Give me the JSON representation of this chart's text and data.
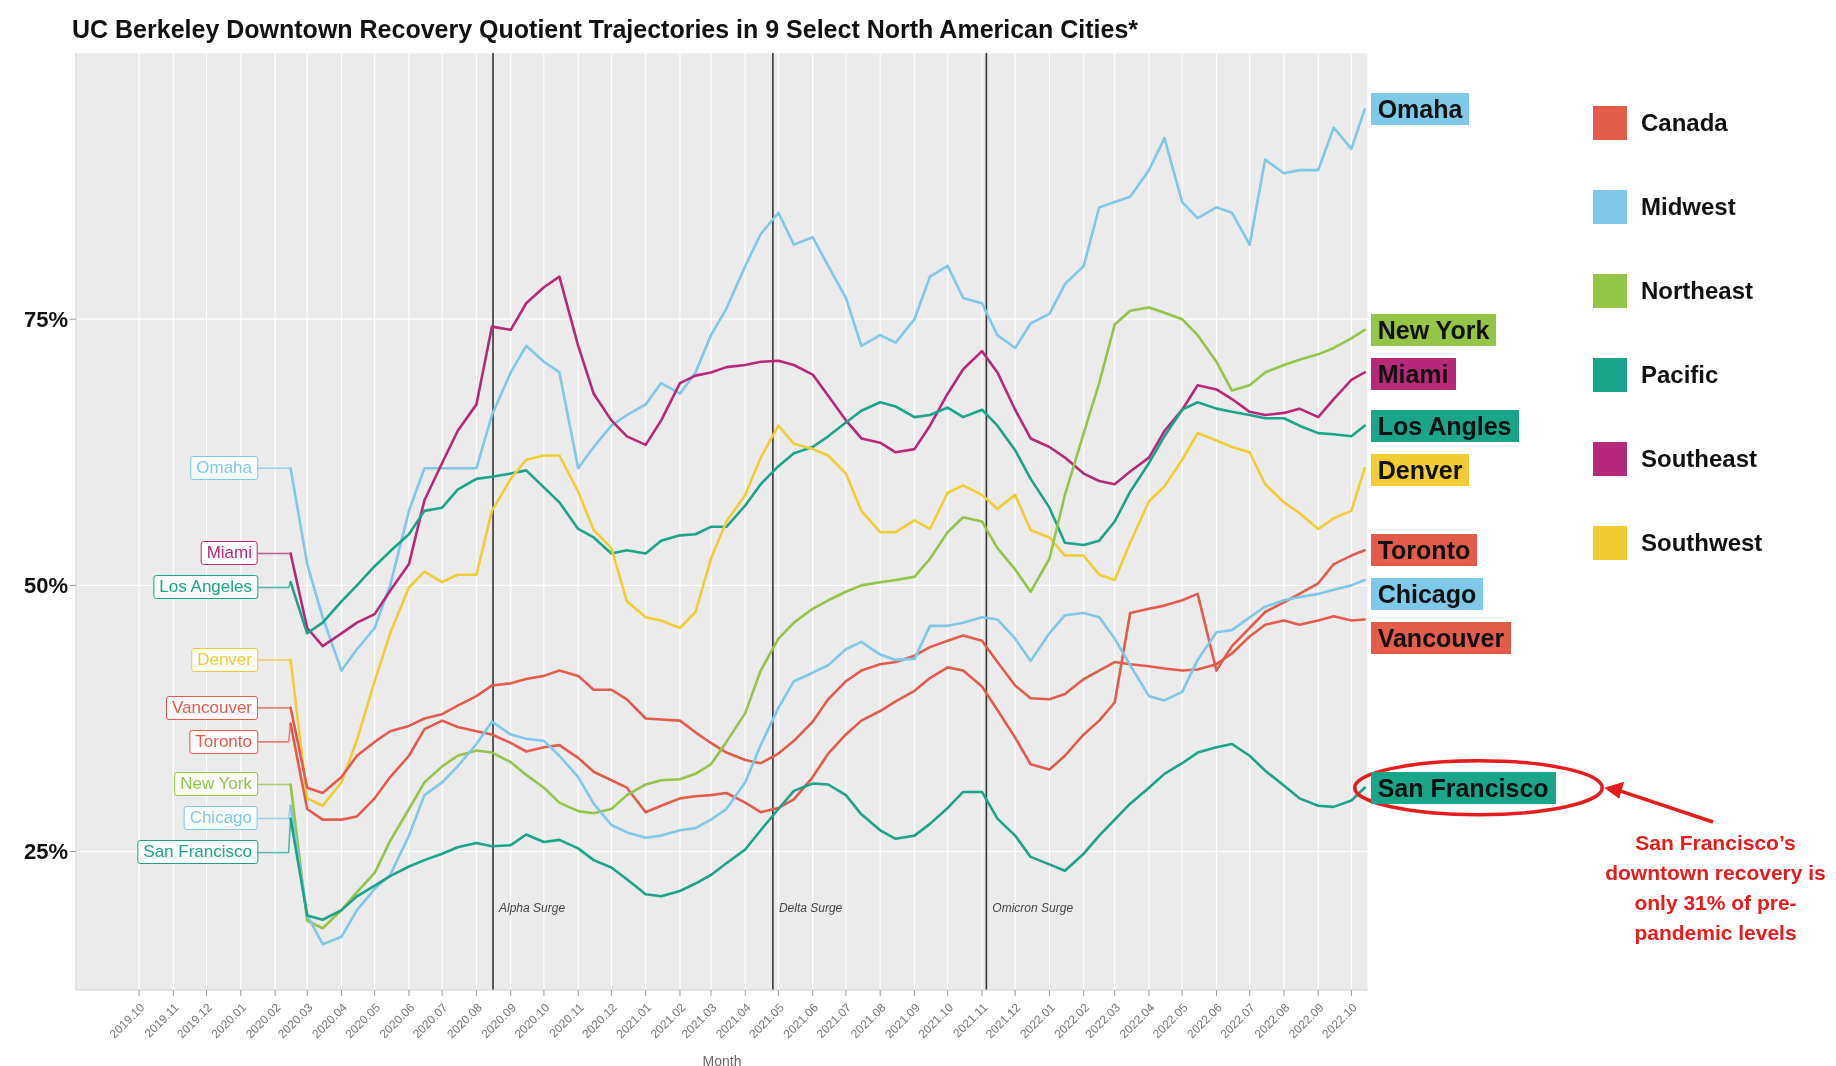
{
  "chart_data": {
    "type": "line",
    "title": "UC Berkeley Downtown Recovery Quotient Trajectories in 9 Select North American Cities*",
    "xlabel": "Month",
    "x": [
      "2020-02-15",
      "2020-03-01",
      "2020-03-15",
      "2020-04-01",
      "2020-04-15",
      "2020-05-01",
      "2020-05-15",
      "2020-06-01",
      "2020-06-15",
      "2020-07-01",
      "2020-07-15",
      "2020-08-01",
      "2020-08-15",
      "2020-09-01",
      "2020-09-15",
      "2020-10-01",
      "2020-10-15",
      "2020-11-01",
      "2020-11-15",
      "2020-12-01",
      "2020-12-15",
      "2021-01-01",
      "2021-01-15",
      "2021-02-01",
      "2021-02-15",
      "2021-03-01",
      "2021-03-15",
      "2021-04-01",
      "2021-04-15",
      "2021-05-01",
      "2021-05-15",
      "2021-06-01",
      "2021-06-15",
      "2021-07-01",
      "2021-07-15",
      "2021-08-01",
      "2021-08-15",
      "2021-09-01",
      "2021-09-15",
      "2021-10-01",
      "2021-10-15",
      "2021-11-01",
      "2021-11-15",
      "2021-12-01",
      "2021-12-15",
      "2022-01-01",
      "2022-01-15",
      "2022-02-01",
      "2022-02-15",
      "2022-03-01",
      "2022-03-15",
      "2022-04-01",
      "2022-04-15",
      "2022-05-01",
      "2022-05-15",
      "2022-06-01",
      "2022-06-15",
      "2022-07-01",
      "2022-07-15",
      "2022-08-01",
      "2022-08-15",
      "2022-09-01",
      "2022-09-15",
      "2022-10-01",
      "2022-10-13"
    ],
    "series": [
      {
        "color": "#7ec8e8",
        "values": [
          61,
          52,
          47,
          42,
          44,
          46,
          50,
          57,
          61,
          61,
          61,
          61,
          66,
          70,
          72.5,
          71,
          70,
          61,
          63,
          65,
          66,
          67,
          69,
          68,
          70,
          73.5,
          76,
          80,
          83,
          85,
          82,
          82.7,
          80,
          77,
          72.5,
          73.5,
          72.8,
          75,
          79,
          80,
          77,
          76.5,
          73.5,
          72.3,
          74.6,
          75.5,
          78.3,
          80,
          85.5,
          86,
          86.5,
          89,
          92,
          86,
          84.5,
          85.5,
          85,
          82,
          90,
          88.7,
          89,
          89,
          93,
          91,
          94.7
        ]
      },
      {
        "color": "#b8287a",
        "values": [
          53,
          46,
          44.3,
          45.5,
          46.5,
          47.3,
          49.5,
          52,
          58,
          61.5,
          64.5,
          67,
          74.3,
          74,
          76.5,
          78,
          79,
          72.5,
          68,
          65.5,
          64,
          63.2,
          65.5,
          69,
          69.7,
          70,
          70.5,
          70.7,
          71,
          71.1,
          70.7,
          69.8,
          67.8,
          65.5,
          63.8,
          63.4,
          62.5,
          62.8,
          65,
          68,
          70.3,
          72,
          70,
          66.5,
          63.8,
          63,
          62,
          60.5,
          59.8,
          59.5,
          60.7,
          62,
          64.5,
          66.5,
          68.8,
          68.4,
          67.5,
          66.3,
          66,
          66.2,
          66.6,
          65.8,
          67.5,
          69.3,
          70
        ]
      },
      {
        "color": "#1aa48a",
        "values": [
          50.3,
          45.5,
          46.5,
          48.5,
          50,
          51.8,
          53.2,
          54.8,
          57,
          57.3,
          59,
          60,
          60.2,
          60.5,
          60.8,
          59.2,
          57.8,
          55.3,
          54.5,
          53,
          53.3,
          53,
          54.2,
          54.7,
          54.8,
          55.5,
          55.5,
          57.5,
          59.5,
          61.2,
          62.4,
          63,
          64,
          65.3,
          66.4,
          67.2,
          66.8,
          65.8,
          66,
          66.7,
          65.8,
          66.5,
          65,
          62.7,
          60,
          57.3,
          54,
          53.8,
          54.2,
          56,
          58.8,
          61.5,
          64,
          66.5,
          67.2,
          66.6,
          66.3,
          66,
          65.7,
          65.7,
          65,
          64.3,
          64.2,
          64,
          65
        ]
      },
      {
        "color": "#f2cc35",
        "values": [
          43,
          30,
          29.3,
          31.5,
          35.5,
          41,
          45.5,
          49.8,
          51.3,
          50.3,
          51,
          51,
          57,
          60,
          61.8,
          62.2,
          62.2,
          58.8,
          55.2,
          53.5,
          48.5,
          47,
          46.7,
          46,
          47.5,
          52.5,
          56,
          58.5,
          62,
          65,
          63.3,
          62.8,
          62.2,
          60.5,
          57,
          55,
          55,
          56.1,
          55.3,
          58.7,
          59.4,
          58.5,
          57.2,
          58.5,
          55.2,
          54.5,
          52.8,
          52.8,
          51,
          50.5,
          54,
          57.9,
          59.3,
          61.8,
          64.3,
          63.6,
          63,
          62.5,
          59.5,
          57.8,
          56.8,
          55.3,
          56.3,
          57,
          61
        ]
      },
      {
        "color": "#e35b4b",
        "values": [
          38.5,
          31,
          30.5,
          32,
          34,
          35.3,
          36.3,
          36.8,
          37.5,
          37.9,
          38.7,
          39.6,
          40.6,
          40.8,
          41.2,
          41.5,
          42,
          41.5,
          40.2,
          40.2,
          39.3,
          37.5,
          37.4,
          37.3,
          36.2,
          35.2,
          34.3,
          33.6,
          33.3,
          34.2,
          35.4,
          37.2,
          39.3,
          41,
          42,
          42.6,
          42.8,
          43.4,
          44.2,
          44.8,
          45.3,
          44.8,
          42.8,
          40.6,
          39.4,
          39.3,
          39.8,
          41.2,
          42,
          42.8,
          42.6,
          42.4,
          42.2,
          42,
          42.1,
          42.6,
          43.6,
          45.2,
          46.3,
          46.7,
          46.3,
          46.7,
          47.1,
          46.7,
          46.8
        ]
      },
      {
        "color": "#e35b4b",
        "values": [
          37,
          29,
          28,
          28,
          28.3,
          30,
          32,
          34,
          36.5,
          37.3,
          36.7,
          36.3,
          36,
          35.2,
          34.4,
          34.8,
          35,
          33.8,
          32.5,
          31.7,
          31,
          28.7,
          29.3,
          30,
          30.2,
          30.3,
          30.5,
          29.6,
          28.7,
          29.1,
          29.9,
          32,
          34.2,
          36,
          37.3,
          38.2,
          39.1,
          40.1,
          41.3,
          42.3,
          42,
          40.5,
          38.3,
          35.7,
          33.2,
          32.7,
          34,
          36,
          37.3,
          39,
          47.4,
          47.8,
          48.1,
          48.6,
          49.2,
          42,
          44.3,
          46,
          47.5,
          48.4,
          49.2,
          50.2,
          52,
          52.8,
          53.3
        ]
      },
      {
        "color": "#93c547",
        "values": [
          31.3,
          18.5,
          17.8,
          19.5,
          21.2,
          23,
          26,
          29,
          31.5,
          33,
          34,
          34.5,
          34.3,
          33.4,
          32.2,
          31,
          29.6,
          28.8,
          28.6,
          29,
          30.3,
          31.3,
          31.7,
          31.8,
          32.3,
          33.2,
          35.3,
          38,
          42,
          45,
          46.5,
          47.8,
          48.6,
          49.4,
          50,
          50.3,
          50.5,
          50.8,
          52.5,
          55,
          56.4,
          56,
          53.5,
          51.5,
          49.4,
          52.5,
          58.5,
          64.3,
          69,
          74.5,
          75.8,
          76.1,
          75.6,
          75,
          73.5,
          71,
          68.3,
          68.8,
          70,
          70.7,
          71.2,
          71.7,
          72.3,
          73.2,
          74
        ]
      },
      {
        "color": "#7ec8e8",
        "values": [
          29.3,
          19,
          16.3,
          17,
          19.5,
          21.5,
          22.8,
          26.5,
          30.3,
          31.5,
          33,
          35.1,
          37.2,
          36,
          35.6,
          35.4,
          34,
          32,
          29.5,
          27.5,
          26.8,
          26.3,
          26.5,
          27,
          27.2,
          28,
          29,
          31.5,
          35,
          38.5,
          41,
          41.8,
          42.5,
          44,
          44.7,
          43.5,
          43,
          43.1,
          46.2,
          46.2,
          46.5,
          47,
          46.8,
          45,
          42.9,
          45.5,
          47.2,
          47.4,
          47,
          45,
          42.5,
          39.6,
          39.2,
          40,
          43,
          45.6,
          45.8,
          47,
          48,
          48.6,
          48.9,
          49.2,
          49.6,
          50,
          50.5
        ]
      },
      {
        "color": "#1aa48a",
        "values": [
          28.1,
          19,
          18.6,
          19.5,
          20.8,
          21.8,
          22.7,
          23.6,
          24.2,
          24.8,
          25.4,
          25.8,
          25.5,
          25.6,
          26.6,
          25.9,
          26.1,
          25.3,
          24.2,
          23.5,
          22.4,
          21,
          20.8,
          21.3,
          22,
          22.8,
          23.9,
          25.2,
          27,
          29,
          30.7,
          31.4,
          31.3,
          30.3,
          28.5,
          27,
          26.2,
          26.5,
          27.6,
          29.1,
          30.6,
          30.6,
          28.1,
          26.5,
          24.5,
          23.8,
          23.2,
          24.8,
          26.5,
          28,
          29.5,
          31,
          32.3,
          33.3,
          34.3,
          34.8,
          35.1,
          34,
          32.6,
          31.2,
          30,
          29.3,
          29.2,
          29.8,
          31
        ]
      },
      {
        "name": "Canada",
        "color": "#e35b4b",
        "values": [
          null,
          null,
          null,
          null,
          null,
          null,
          null,
          null,
          null,
          null,
          null,
          null,
          null,
          null,
          null,
          null,
          null,
          null,
          null,
          null,
          null,
          null,
          null,
          null,
          null,
          null,
          null,
          null,
          null,
          null,
          null,
          null,
          null,
          null,
          null,
          null,
          null,
          null,
          null,
          null,
          null,
          null,
          null,
          null,
          null,
          null,
          null,
          null,
          null,
          null,
          null,
          null,
          null,
          null,
          null,
          null,
          null,
          null,
          null,
          null,
          null,
          null,
          null,
          null,
          null
        ]
      },
      {
        "name": "Midwest",
        "color": "#7ec8e8",
        "values": [
          null,
          null,
          null,
          null,
          null,
          null,
          null,
          null,
          null,
          null,
          null,
          null,
          null,
          null,
          null,
          null,
          null,
          null,
          null,
          null,
          null,
          null,
          null,
          null,
          null,
          null,
          null,
          null,
          null,
          null,
          null,
          null,
          null,
          null,
          null,
          null,
          null,
          null,
          null,
          null,
          null,
          null,
          null,
          null,
          null,
          null,
          null,
          null,
          null,
          null,
          null,
          null,
          null,
          null,
          null,
          null,
          null,
          null,
          null,
          null,
          null,
          null,
          null,
          null,
          null
        ]
      },
      {
        "name": "Northeast",
        "color": "#93c547",
        "values": [
          null,
          null,
          null,
          null,
          null,
          null,
          null,
          null,
          null,
          null,
          null,
          null,
          null,
          null,
          null,
          null,
          null,
          null,
          null,
          null,
          null,
          null,
          null,
          null,
          null,
          null,
          null,
          null,
          null,
          null,
          null,
          null,
          null,
          null,
          null,
          null,
          null,
          null,
          null,
          null,
          null,
          null,
          null,
          null,
          null,
          null,
          null,
          null,
          null,
          null,
          null,
          null,
          null,
          null,
          null,
          null,
          null,
          null,
          null,
          null,
          null,
          null,
          null,
          null,
          null
        ]
      },
      {
        "name": "Pacific",
        "color": "#1aa48a",
        "values": [
          null,
          null,
          null,
          null,
          null,
          null,
          null,
          null,
          null,
          null,
          null,
          null,
          null,
          null,
          null,
          null,
          null,
          null,
          null,
          null,
          null,
          null,
          null,
          null,
          null,
          null,
          null,
          null,
          null,
          null,
          null,
          null,
          null,
          null,
          null,
          null,
          null,
          null,
          null,
          null,
          null,
          null,
          null,
          null,
          null,
          null,
          null,
          null,
          null,
          null,
          null,
          null,
          null,
          null,
          null,
          null,
          null,
          null,
          null,
          null,
          null,
          null,
          null,
          null,
          null
        ]
      },
      {
        "name": "Southeast",
        "color": "#b8287a",
        "values": [
          null,
          null,
          null,
          null,
          null,
          null,
          null,
          null,
          null,
          null,
          null,
          null,
          null,
          null,
          null,
          null,
          null,
          null,
          null,
          null,
          null,
          null,
          null,
          null,
          null,
          null,
          null,
          null,
          null,
          null,
          null,
          null,
          null,
          null,
          null,
          null,
          null,
          null,
          null,
          null,
          null,
          null,
          null,
          null,
          null,
          null,
          null,
          null,
          null,
          null,
          null,
          null,
          null,
          null,
          null,
          null,
          null,
          null,
          null,
          null,
          null,
          null,
          null,
          null,
          null
        ]
      },
      {
        "name": "Southwest",
        "color": "#f2cc35",
        "values": [
          null,
          null,
          null,
          null,
          null,
          null,
          null,
          null,
          null,
          null,
          null,
          null,
          null,
          null,
          null,
          null,
          null,
          null,
          null,
          null,
          null,
          null,
          null,
          null,
          null,
          null,
          null,
          null,
          null,
          null,
          null,
          null,
          null,
          null,
          null,
          null,
          null,
          null,
          null,
          null,
          null,
          null,
          null,
          null,
          null,
          null,
          null,
          null,
          null,
          null,
          null,
          null,
          null,
          null,
          null,
          null,
          null,
          null,
          null,
          null,
          null,
          null,
          null,
          null,
          null
        ]
      }
    ],
    "xlim": [
      "2019-08-05",
      "2022-10-16"
    ],
    "xticks": [
      {
        "value": "2019-10",
        "label": "2019.10"
      },
      {
        "value": "2019-11",
        "label": "2019.11"
      },
      {
        "value": "2019-12",
        "label": "2019.12"
      },
      {
        "value": "2020-01",
        "label": "2020.01"
      },
      {
        "value": "2020-02",
        "label": "2020.02"
      },
      {
        "value": "2020-03",
        "label": "2020.03"
      },
      {
        "value": "2020-04",
        "label": "2020.04"
      },
      {
        "value": "2020-05",
        "label": "2020.05"
      },
      {
        "value": "2020-06",
        "label": "2020.06"
      },
      {
        "value": "2020-07",
        "label": "2020.07"
      },
      {
        "value": "2020-08",
        "label": "2020.08"
      },
      {
        "value": "2020-09",
        "label": "2020.09"
      },
      {
        "value": "2020-10",
        "label": "2020.10"
      },
      {
        "value": "2020-11",
        "label": "2020.11"
      },
      {
        "value": "2020-12",
        "label": "2020.12"
      },
      {
        "value": "2021-01",
        "label": "2021.01"
      },
      {
        "value": "2021-02",
        "label": "2021.02"
      },
      {
        "value": "2021-03",
        "label": "2021.03"
      },
      {
        "value": "2021-04",
        "label": "2021.04"
      },
      {
        "value": "2021-05",
        "label": "2021.05"
      },
      {
        "value": "2021-06",
        "label": "2021.06"
      },
      {
        "value": "2021-07",
        "label": "2021.07"
      },
      {
        "value": "2021-08",
        "label": "2021.08"
      },
      {
        "value": "2021-09",
        "label": "2021.09"
      },
      {
        "value": "2021-10",
        "label": "2021.10"
      },
      {
        "value": "2021-11",
        "label": "2021.11"
      },
      {
        "value": "2021-12",
        "label": "2021.12"
      },
      {
        "value": "2022-01",
        "label": "2022.01"
      },
      {
        "value": "2022-02",
        "label": "2022.02"
      },
      {
        "value": "2022-03",
        "label": "2022.03"
      },
      {
        "value": "2022-04",
        "label": "2022.04"
      },
      {
        "value": "2022-05",
        "label": "2022.05"
      },
      {
        "value": "2022-06",
        "label": "2022.06"
      },
      {
        "value": "2022-07",
        "label": "2022.07"
      },
      {
        "value": "2022-08",
        "label": "2022.08"
      },
      {
        "value": "2022-09",
        "label": "2022.09"
      },
      {
        "value": "2022-10",
        "label": "2022.10"
      }
    ],
    "ylim": [
      12,
      100
    ],
    "yticks": [
      {
        "value": 25,
        "label": "25%"
      },
      {
        "value": 50,
        "label": "50%"
      },
      {
        "value": 75,
        "label": "75%"
      }
    ],
    "grid": true,
    "legend": "top right",
    "ref_lines": [
      {
        "axis": "x",
        "value": "2020-08-16",
        "label": "Alpha Surge",
        "color": "#333333"
      },
      {
        "axis": "x",
        "value": "2021-04-26",
        "label": "Delta Surge",
        "color": "#333333"
      },
      {
        "axis": "x",
        "value": "2021-11-05",
        "label": "Omicron Surge",
        "color": "#333333"
      }
    ],
    "annotations": [
      {
        "text": "Omaha",
        "x": "2020-02-15",
        "y": 61
      },
      {
        "text": "Miami",
        "x": "2020-02-15",
        "y": 53
      },
      {
        "text": "Los Angeles",
        "x": "2020-02-15",
        "y": 50.3
      },
      {
        "text": "Denver",
        "x": "2020-02-15",
        "y": 43
      },
      {
        "text": "Vancouver",
        "x": "2020-02-15",
        "y": 38.5
      },
      {
        "text": "Toronto",
        "x": "2020-02-15",
        "y": 37
      },
      {
        "text": "New York",
        "x": "2020-02-15",
        "y": 31.3
      },
      {
        "text": "Chicago",
        "x": "2020-02-15",
        "y": 29.3
      },
      {
        "text": "San Francisco",
        "x": "2020-02-15",
        "y": 28.1
      },
      {
        "text": "Omaha",
        "x": "2022-10-13",
        "y": 94.7
      },
      {
        "text": "New York",
        "x": "2022-10-13",
        "y": 74
      },
      {
        "text": "Miami",
        "x": "2022-10-13",
        "y": 70
      },
      {
        "text": "Los Angles",
        "x": "2022-10-13",
        "y": 65
      },
      {
        "text": "Denver",
        "x": "2022-10-13",
        "y": 61
      },
      {
        "text": "Toronto",
        "x": "2022-10-13",
        "y": 53.3
      },
      {
        "text": "Chicago",
        "x": "2022-10-13",
        "y": 50.5
      },
      {
        "text": "Vancouver",
        "x": "2022-10-13",
        "y": 46.8
      },
      {
        "text": "San Francisco",
        "x": "2022-10-13",
        "y": 31
      },
      "San Francisco’s downtown recovery is only 31% of pre-pandemic levels"
    ]
  }
}
